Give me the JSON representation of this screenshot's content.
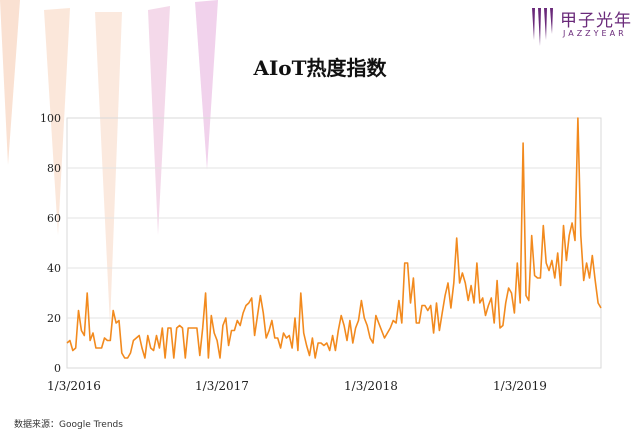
{
  "brand": {
    "name": "甲子光年",
    "subtitle": "JAZZYEAR",
    "accent_color": "#6a2a7a"
  },
  "source_text": "数据来源：Google Trends",
  "chart_data": {
    "type": "line",
    "title": "AIoT热度指数",
    "xlabel": "",
    "ylabel": "",
    "ylim": [
      0,
      100
    ],
    "yticks": [
      0,
      20,
      40,
      60,
      80,
      100
    ],
    "xticks": [
      "1/3/2016",
      "1/3/2017",
      "1/3/2018",
      "1/3/2019"
    ],
    "grid": "horizontal",
    "line_color": "#f28a1e",
    "series": [
      {
        "values": [
          10,
          11,
          7,
          8,
          23,
          15,
          13,
          30,
          11,
          14,
          8,
          8,
          8,
          12,
          11,
          11,
          23,
          18,
          19,
          6,
          4,
          4,
          6,
          11,
          12,
          13,
          8,
          4,
          13,
          8,
          7,
          13,
          8,
          16,
          4,
          16,
          16,
          4,
          16,
          17,
          16,
          4,
          16,
          16,
          16,
          16,
          5,
          16,
          30,
          4,
          21,
          14,
          11,
          4,
          17,
          20,
          9,
          15,
          15,
          19,
          17,
          22,
          25,
          26,
          28,
          13,
          21,
          29,
          22,
          12,
          15,
          19,
          12,
          12,
          8,
          14,
          12,
          13,
          8,
          20,
          7,
          30,
          14,
          9,
          5,
          12,
          4,
          10,
          10,
          9,
          10,
          7,
          13,
          7,
          15,
          21,
          17,
          11,
          19,
          10,
          16,
          19,
          27,
          20,
          17,
          12,
          10,
          21,
          18,
          15,
          12,
          14,
          16,
          19,
          18,
          27,
          18,
          42,
          42,
          26,
          36,
          18,
          18,
          25,
          25,
          23,
          25,
          14,
          26,
          15,
          22,
          29,
          34,
          24,
          34,
          52,
          34,
          38,
          34,
          27,
          33,
          26,
          42,
          26,
          28,
          21,
          25,
          28,
          18,
          35,
          16,
          17,
          26,
          32,
          30,
          22,
          42,
          26,
          90,
          29,
          27,
          53,
          37,
          36,
          36,
          57,
          42,
          39,
          43,
          36,
          46,
          33,
          57,
          43,
          53,
          58,
          51,
          100,
          53,
          35,
          42,
          36,
          45,
          35,
          26,
          24
        ]
      }
    ]
  }
}
